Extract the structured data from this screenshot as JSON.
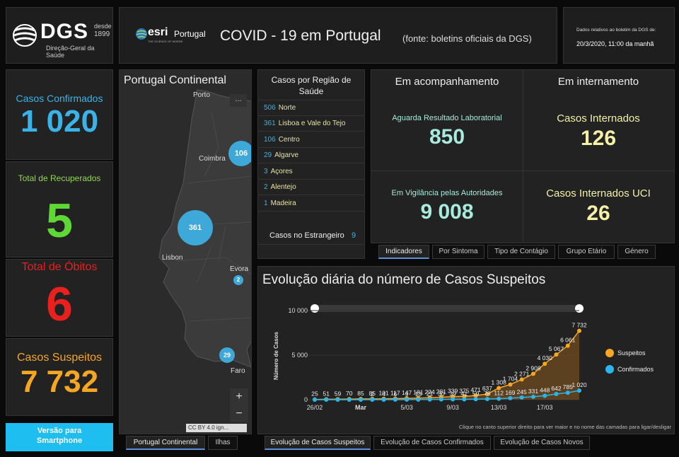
{
  "header": {
    "logo_text": "DGS",
    "logo_since_top": "desde",
    "logo_since_year": "1899",
    "logo_sub": "Direção-Geral da Saúde",
    "esri_text": "esri",
    "esri_portugal": "Portugal",
    "esri_tagline": "THE SCIENCE OF WHERE",
    "title": "COVID - 19 em Portugal",
    "source": "(fonte: boletins oficiais da DGS)",
    "date_label": "Dados relativos ao boletim da DGS de:",
    "date_value": "20/3/2020, 11:00 da manhã"
  },
  "stats": {
    "confirmed_label": "Casos Confirmados",
    "confirmed_value": "1 020",
    "recovered_label": "Total de Recuperados",
    "recovered_value": "5",
    "deaths_label": "Total de Óbitos",
    "deaths_value": "6",
    "suspects_label": "Casos Suspeitos",
    "suspects_value": "7 732",
    "colors": {
      "confirmed": "#3bb3e6",
      "recovered": "#5ed835",
      "deaths": "#e8201e",
      "suspects": "#f5a623"
    }
  },
  "smartphone_button": "Versão para Smartphone",
  "map": {
    "title": "Portugal Continental",
    "menu": "...",
    "places": [
      "Porto",
      "Coimbra",
      "Lisbon",
      "Evora",
      "Faro"
    ],
    "bubbles": [
      "106",
      "361",
      "2",
      "29"
    ],
    "zoom_in": "+",
    "zoom_out": "−",
    "attribution": "CC BY 4.0 ign...",
    "tabs": [
      "Portugal Continental",
      "Ilhas"
    ]
  },
  "regions": {
    "title": "Casos por Região de Saúde",
    "items": [
      {
        "count": "506",
        "name": "Norte"
      },
      {
        "count": "361",
        "name": "Lisboa e Vale do Tejo"
      },
      {
        "count": "106",
        "name": "Centro"
      },
      {
        "count": "29",
        "name": "Algarve"
      },
      {
        "count": "3",
        "name": "Açores"
      },
      {
        "count": "2",
        "name": "Alentejo"
      },
      {
        "count": "1",
        "name": "Madeira"
      }
    ],
    "abroad_label": "Casos no Estrangeiro",
    "abroad_value": "9"
  },
  "indicators": {
    "col1_title": "Em acompanhamento",
    "col2_title": "Em internamento",
    "awaiting_label": "Aguarda Resultado Laboratorial",
    "awaiting_value": "850",
    "surveillance_label": "Em Vigilância pelas Autoridades",
    "surveillance_value": "9 008",
    "hospital_label": "Casos Internados",
    "hospital_value": "126",
    "icu_label": "Casos Internados UCI",
    "icu_value": "26",
    "tabs": [
      "Indicadores",
      "Por Sintoma",
      "Tipo de Contágio",
      "Grupo Etário",
      "Género"
    ]
  },
  "chart_panel": {
    "title": "Evolução diária do número de Casos Suspeitos",
    "note": "Clique no canto superior direito para ver maior e no nome das camadas para ligar/desligar",
    "tabs": [
      "Evolução de Casos Suspeitos",
      "Evolução de Casos Confirmados",
      "Evolução de Casos Novos"
    ]
  },
  "chart_data": {
    "type": "area",
    "title": "Evolução diária do número de Casos Suspeitos",
    "ylabel": "Número de Casos",
    "xlabel": "",
    "ylim": [
      0,
      10000
    ],
    "yticks": [
      "0",
      "5 000",
      "10 000"
    ],
    "xticks": [
      "26/02",
      "Mar",
      "5/03",
      "9/03",
      "13/03",
      "17/03"
    ],
    "x": [
      "26/02",
      "27/02",
      "28/02",
      "29/02",
      "01/03",
      "02/03",
      "03/03",
      "04/03",
      "05/03",
      "06/03",
      "07/03",
      "08/03",
      "09/03",
      "10/03",
      "11/03",
      "12/03",
      "13/03",
      "14/03",
      "15/03",
      "16/03",
      "17/03",
      "18/03",
      "19/03",
      "20/03"
    ],
    "series": [
      {
        "name": "Suspeitos",
        "color": "#f5a623",
        "values": [
          25,
          51,
          59,
          70,
          85,
          85,
          101,
          117,
          147,
          181,
          224,
          281,
          339,
          375,
          471,
          637,
          1308,
          1704,
          2271,
          2908,
          4030,
          5067,
          6061,
          7732
        ],
        "labels": [
          "25",
          "51",
          "59",
          "70",
          "85",
          "85",
          "101",
          "117",
          "147",
          "181",
          "224",
          "281",
          "339",
          "375",
          "471",
          "637",
          "1 308",
          "1 704",
          "2 271",
          "2 908",
          "4 030",
          "5 067",
          "6 061",
          "7 732"
        ]
      },
      {
        "name": "Confirmados",
        "color": "#2bb5ec",
        "values": [
          0,
          0,
          0,
          0,
          0,
          2,
          4,
          6,
          9,
          13,
          21,
          30,
          39,
          41,
          59,
          78,
          112,
          169,
          245,
          331,
          448,
          642,
          785,
          1020
        ],
        "labels": [
          "",
          "",
          "",
          "",
          "",
          "2",
          "4",
          "6",
          "9",
          "13",
          "21",
          "30",
          "39",
          "41",
          "59",
          "78",
          "112",
          "169",
          "245",
          "331",
          "448",
          "642",
          "785",
          "1 020"
        ]
      }
    ],
    "legend_position": "right"
  }
}
